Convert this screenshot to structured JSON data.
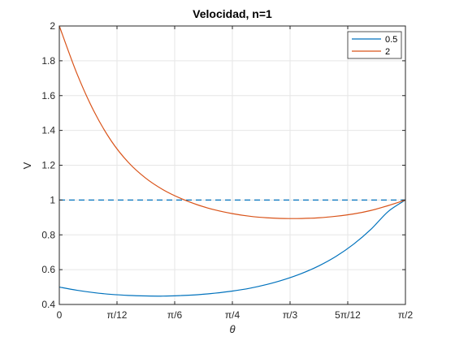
{
  "chart_data": {
    "type": "line",
    "title": "Velocidad, n=1",
    "xlabel": "θ",
    "ylabel": "V",
    "xlim": [
      0,
      1.5708
    ],
    "ylim": [
      0.4,
      2
    ],
    "grid": true,
    "legend_position": "top-right",
    "x_ticks": [
      {
        "value": 0,
        "label": "0"
      },
      {
        "value": 0.2618,
        "label": "π/12"
      },
      {
        "value": 0.5236,
        "label": "π/6"
      },
      {
        "value": 0.7854,
        "label": "π/4"
      },
      {
        "value": 1.0472,
        "label": "π/3"
      },
      {
        "value": 1.309,
        "label": "5π/12"
      },
      {
        "value": 1.5708,
        "label": "π/2"
      }
    ],
    "y_ticks": [
      {
        "value": 0.4,
        "label": "0.4"
      },
      {
        "value": 0.6,
        "label": "0.6"
      },
      {
        "value": 0.8,
        "label": "0.8"
      },
      {
        "value": 1.0,
        "label": "1"
      },
      {
        "value": 1.2,
        "label": "1.2"
      },
      {
        "value": 1.4,
        "label": "1.4"
      },
      {
        "value": 1.6,
        "label": "1.6"
      },
      {
        "value": 1.8,
        "label": "1.8"
      },
      {
        "value": 2.0,
        "label": "2"
      }
    ],
    "x": [
      0,
      0.0785,
      0.1571,
      0.2356,
      0.3142,
      0.3927,
      0.4712,
      0.5498,
      0.6283,
      0.7069,
      0.7854,
      0.8639,
      0.9425,
      1.021,
      1.0996,
      1.1781,
      1.2566,
      1.3352,
      1.4137,
      1.4923,
      1.5708
    ],
    "series": [
      {
        "name": "0.5",
        "color": "#0072BD",
        "values": [
          0.5,
          0.482,
          0.468,
          0.458,
          0.452,
          0.449,
          0.448,
          0.451,
          0.456,
          0.465,
          0.477,
          0.493,
          0.515,
          0.543,
          0.578,
          0.622,
          0.677,
          0.746,
          0.831,
          0.934,
          1.0
        ]
      },
      {
        "name": "2",
        "color": "#D95319",
        "values": [
          2.0,
          1.731,
          1.51,
          1.34,
          1.215,
          1.125,
          1.059,
          1.01,
          0.972,
          0.943,
          0.922,
          0.907,
          0.898,
          0.894,
          0.894,
          0.898,
          0.907,
          0.92,
          0.94,
          0.968,
          1.0
        ]
      }
    ],
    "reference_line": {
      "y": 1.0,
      "style": "dashed",
      "color": "#0072BD"
    }
  }
}
